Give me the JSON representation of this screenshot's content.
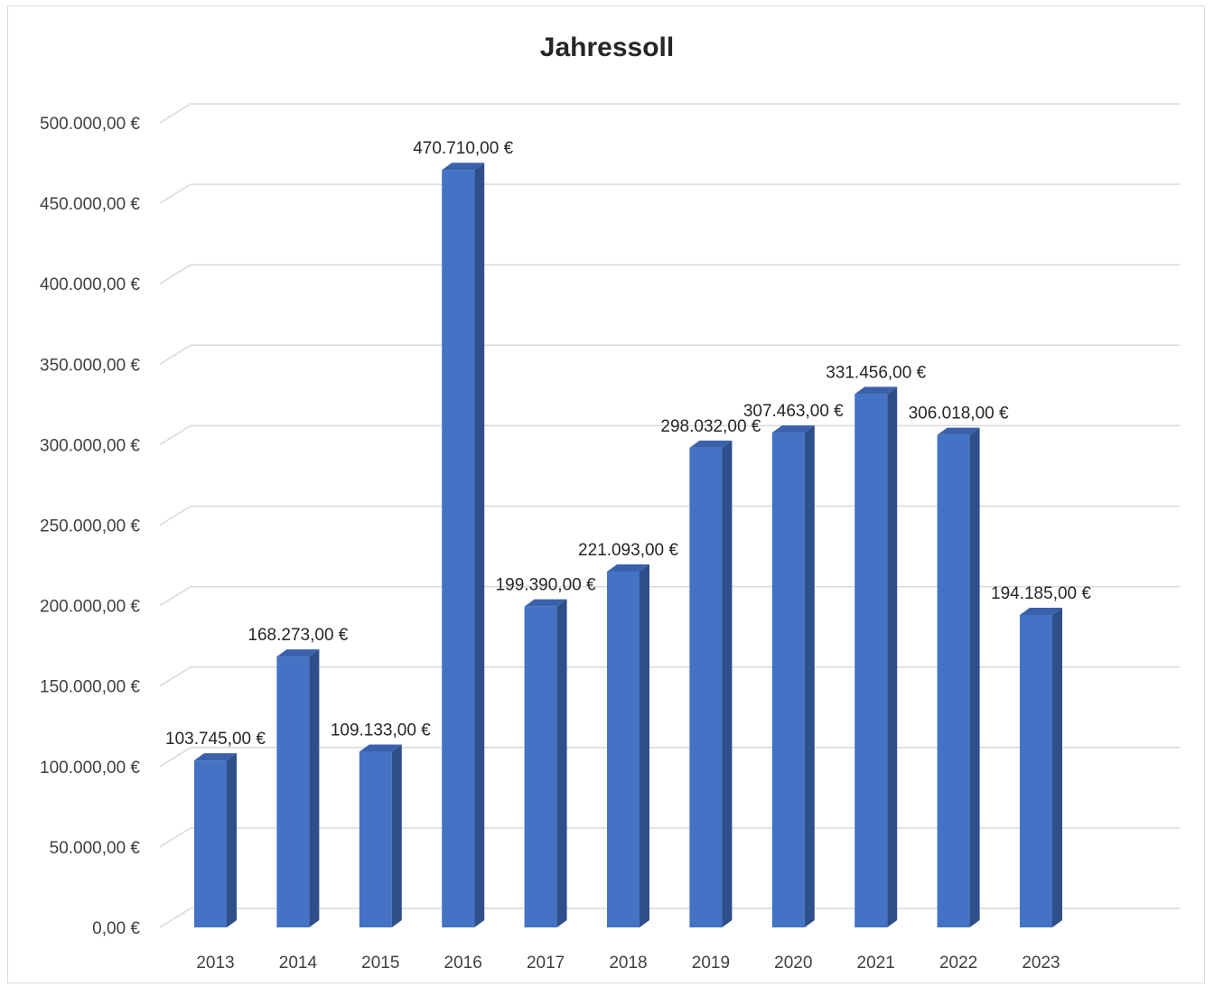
{
  "chart_data": {
    "type": "bar",
    "title": "Jahressoll",
    "xlabel": "",
    "ylabel": "",
    "categories": [
      "2013",
      "2014",
      "2015",
      "2016",
      "2017",
      "2018",
      "2019",
      "2020",
      "2021",
      "2022",
      "2023"
    ],
    "values": [
      103745,
      168273,
      109133,
      470710,
      199390,
      221093,
      298032,
      307463,
      331456,
      306018,
      194185
    ],
    "value_labels": [
      "103.745,00 €",
      "168.273,00 €",
      "109.133,00 €",
      "470.710,00 €",
      "199.390,00 €",
      "221.093,00 €",
      "298.032,00 €",
      "307.463,00 €",
      "331.456,00 €",
      "306.018,00 €",
      "194.185,00 €"
    ],
    "ylim": [
      0,
      500000
    ],
    "yticks": [
      0,
      50000,
      100000,
      150000,
      200000,
      250000,
      300000,
      350000,
      400000,
      450000,
      500000
    ],
    "ytick_labels": [
      "0,00 €",
      "50.000,00 €",
      "100.000,00 €",
      "150.000,00 €",
      "200.000,00 €",
      "250.000,00 €",
      "300.000,00 €",
      "350.000,00 €",
      "400.000,00 €",
      "450.000,00 €",
      "500.000,00 €"
    ],
    "grid": true,
    "legend": "none",
    "bar_color": "#4472c4",
    "bar_side_color": "#2f4f8a",
    "bar_top_color": "#3a62ac",
    "grid_color": "#d9d9d9"
  }
}
